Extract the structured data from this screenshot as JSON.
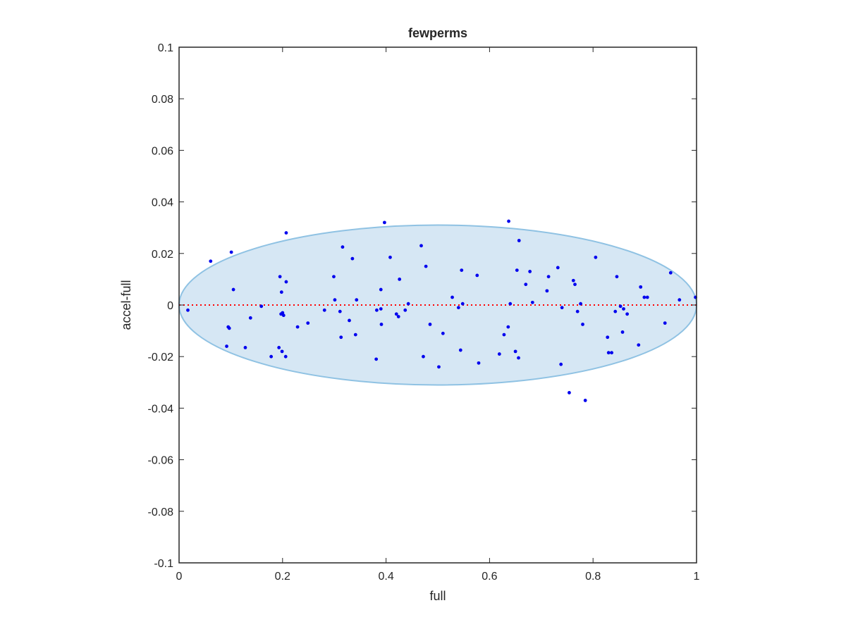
{
  "chart_data": {
    "type": "scatter",
    "title": "fewperms",
    "xlabel": "full",
    "ylabel": "accel-full",
    "xlim": [
      0,
      1
    ],
    "ylim": [
      -0.1,
      0.1
    ],
    "xticks": [
      0,
      0.2,
      0.4,
      0.6,
      0.8,
      1
    ],
    "xtick_labels": [
      "0",
      "0.2",
      "0.4",
      "0.6",
      "0.8",
      "1"
    ],
    "yticks": [
      -0.1,
      -0.08,
      -0.06,
      -0.04,
      -0.02,
      0,
      0.02,
      0.04,
      0.06,
      0.08,
      0.1
    ],
    "ytick_labels": [
      "-0.1",
      "-0.08",
      "-0.06",
      "-0.04",
      "-0.02",
      "0",
      "0.02",
      "0.04",
      "0.06",
      "0.08",
      "0.1"
    ],
    "grid": false,
    "reference_line": {
      "y": 0,
      "color": "#ff0000",
      "style": "dotted"
    },
    "ellipse": {
      "cx": 0.5,
      "cy": 0,
      "rx": 0.5,
      "ry": 0.031,
      "fill": "#d6e7f4",
      "stroke": "#8fc2e3"
    },
    "marker_color": "#0000ee",
    "points": [
      [
        0.017,
        -0.002
      ],
      [
        0.061,
        0.017
      ],
      [
        0.092,
        -0.016
      ],
      [
        0.095,
        -0.0085
      ],
      [
        0.097,
        -0.009
      ],
      [
        0.101,
        0.0205
      ],
      [
        0.105,
        0.006
      ],
      [
        0.128,
        -0.0165
      ],
      [
        0.138,
        -0.005
      ],
      [
        0.159,
        -0.0005
      ],
      [
        0.178,
        -0.02
      ],
      [
        0.193,
        -0.0165
      ],
      [
        0.195,
        0.011
      ],
      [
        0.197,
        -0.0035
      ],
      [
        0.198,
        0.005
      ],
      [
        0.199,
        -0.018
      ],
      [
        0.2,
        -0.003
      ],
      [
        0.202,
        -0.004
      ],
      [
        0.206,
        -0.02
      ],
      [
        0.207,
        0.009
      ],
      [
        0.207,
        0.028
      ],
      [
        0.229,
        -0.0085
      ],
      [
        0.249,
        -0.007
      ],
      [
        0.281,
        -0.002
      ],
      [
        0.299,
        0.011
      ],
      [
        0.301,
        0.002
      ],
      [
        0.311,
        -0.0025
      ],
      [
        0.313,
        -0.0125
      ],
      [
        0.316,
        0.0225
      ],
      [
        0.329,
        -0.006
      ],
      [
        0.335,
        0.018
      ],
      [
        0.341,
        -0.0115
      ],
      [
        0.343,
        0.002
      ],
      [
        0.381,
        -0.021
      ],
      [
        0.382,
        -0.002
      ],
      [
        0.39,
        -0.0015
      ],
      [
        0.39,
        0.006
      ],
      [
        0.391,
        -0.0075
      ],
      [
        0.397,
        0.032
      ],
      [
        0.408,
        0.0185
      ],
      [
        0.42,
        -0.0035
      ],
      [
        0.424,
        -0.0045
      ],
      [
        0.426,
        0.01
      ],
      [
        0.437,
        -0.002
      ],
      [
        0.443,
        0.0005
      ],
      [
        0.468,
        0.023
      ],
      [
        0.472,
        -0.02
      ],
      [
        0.477,
        0.015
      ],
      [
        0.485,
        -0.0075
      ],
      [
        0.502,
        -0.024
      ],
      [
        0.51,
        -0.011
      ],
      [
        0.528,
        0.003
      ],
      [
        0.54,
        -0.001
      ],
      [
        0.544,
        -0.0175
      ],
      [
        0.546,
        0.0135
      ],
      [
        0.548,
        0.0005
      ],
      [
        0.576,
        0.0115
      ],
      [
        0.579,
        -0.0225
      ],
      [
        0.619,
        -0.019
      ],
      [
        0.628,
        -0.0115
      ],
      [
        0.636,
        -0.0085
      ],
      [
        0.637,
        0.0325
      ],
      [
        0.64,
        0.0005
      ],
      [
        0.65,
        -0.018
      ],
      [
        0.653,
        0.0135
      ],
      [
        0.656,
        -0.0205
      ],
      [
        0.657,
        0.025
      ],
      [
        0.67,
        0.008
      ],
      [
        0.678,
        0.013
      ],
      [
        0.683,
        0.001
      ],
      [
        0.711,
        0.0055
      ],
      [
        0.714,
        0.011
      ],
      [
        0.732,
        0.0145
      ],
      [
        0.738,
        -0.023
      ],
      [
        0.74,
        -0.001
      ],
      [
        0.754,
        -0.034
      ],
      [
        0.762,
        0.0095
      ],
      [
        0.765,
        0.008
      ],
      [
        0.77,
        -0.0025
      ],
      [
        0.776,
        0.0005
      ],
      [
        0.78,
        -0.0075
      ],
      [
        0.785,
        -0.037
      ],
      [
        0.805,
        0.0185
      ],
      [
        0.828,
        -0.0125
      ],
      [
        0.83,
        -0.0185
      ],
      [
        0.836,
        -0.0185
      ],
      [
        0.843,
        -0.0025
      ],
      [
        0.846,
        0.011
      ],
      [
        0.853,
        -0.0005
      ],
      [
        0.857,
        -0.0105
      ],
      [
        0.859,
        -0.0015
      ],
      [
        0.866,
        -0.0035
      ],
      [
        0.888,
        -0.0155
      ],
      [
        0.892,
        0.007
      ],
      [
        0.899,
        0.003
      ],
      [
        0.905,
        0.003
      ],
      [
        0.939,
        -0.007
      ],
      [
        0.95,
        0.0125
      ],
      [
        0.967,
        0.002
      ],
      [
        0.998,
        0.003
      ]
    ]
  }
}
